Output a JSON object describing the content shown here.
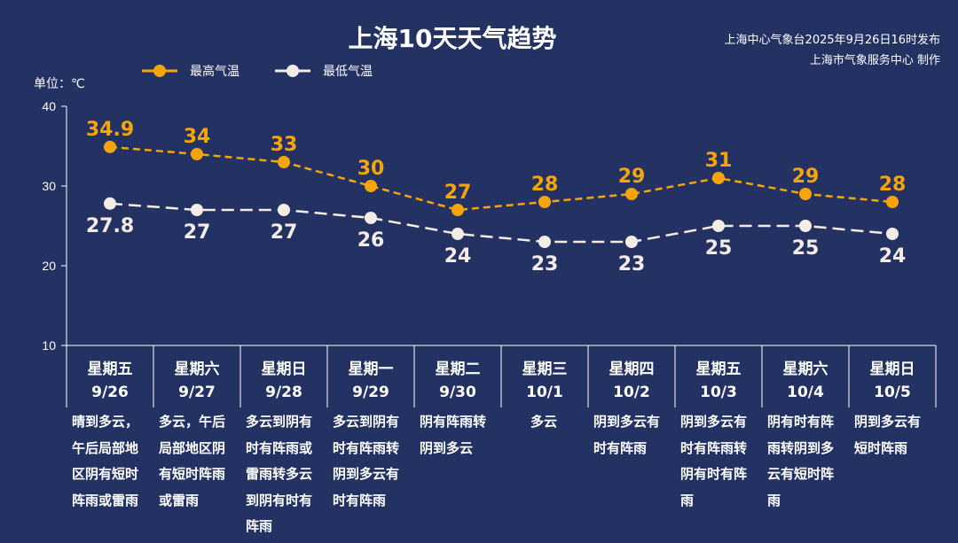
{
  "title": "上海10天天气趋势",
  "publisher": {
    "line1": "上海中心气象台2025年9月26日16时发布",
    "line2": "上海市气象服务中心 制作"
  },
  "unit_label": "单位：℃",
  "colors": {
    "background": "#233263",
    "high": "#f5a40c",
    "low": "#f4ece6"
  },
  "chart_data": {
    "type": "line",
    "ylim": [
      10,
      40
    ],
    "yticks": [
      "10",
      "20",
      "30",
      "40"
    ],
    "categories": [
      {
        "weekday": "星期五",
        "date": "9/26",
        "desc": "晴到多云，午后局部地区阴有短时阵雨或雷雨"
      },
      {
        "weekday": "星期六",
        "date": "9/27",
        "desc": "多云，午后局部地区阴有短时阵雨或雷雨"
      },
      {
        "weekday": "星期日",
        "date": "9/28",
        "desc": "多云到阴有时有阵雨或雷雨转多云到阴有时有阵雨"
      },
      {
        "weekday": "星期一",
        "date": "9/29",
        "desc": "多云到阴有时有阵雨转阴到多云有时有阵雨"
      },
      {
        "weekday": "星期二",
        "date": "9/30",
        "desc": "阴有阵雨转阴到多云"
      },
      {
        "weekday": "星期三",
        "date": "10/1",
        "desc": "多云"
      },
      {
        "weekday": "星期四",
        "date": "10/2",
        "desc": "阴到多云有时有阵雨"
      },
      {
        "weekday": "星期五",
        "date": "10/3",
        "desc": "阴到多云有时有阵雨转阴有时有阵雨"
      },
      {
        "weekday": "星期六",
        "date": "10/4",
        "desc": "阴有时有阵雨转阴到多云有短时阵雨"
      },
      {
        "weekday": "星期日",
        "date": "10/5",
        "desc": "阴到多云有短时阵雨"
      }
    ],
    "series": [
      {
        "name": "最高气温",
        "values": [
          34.9,
          34,
          33,
          30,
          27,
          28,
          29,
          31,
          29,
          28
        ]
      },
      {
        "name": "最低气温",
        "values": [
          27.8,
          27,
          27,
          26,
          24,
          23,
          23,
          25,
          25,
          24
        ]
      }
    ],
    "legend": "top"
  }
}
